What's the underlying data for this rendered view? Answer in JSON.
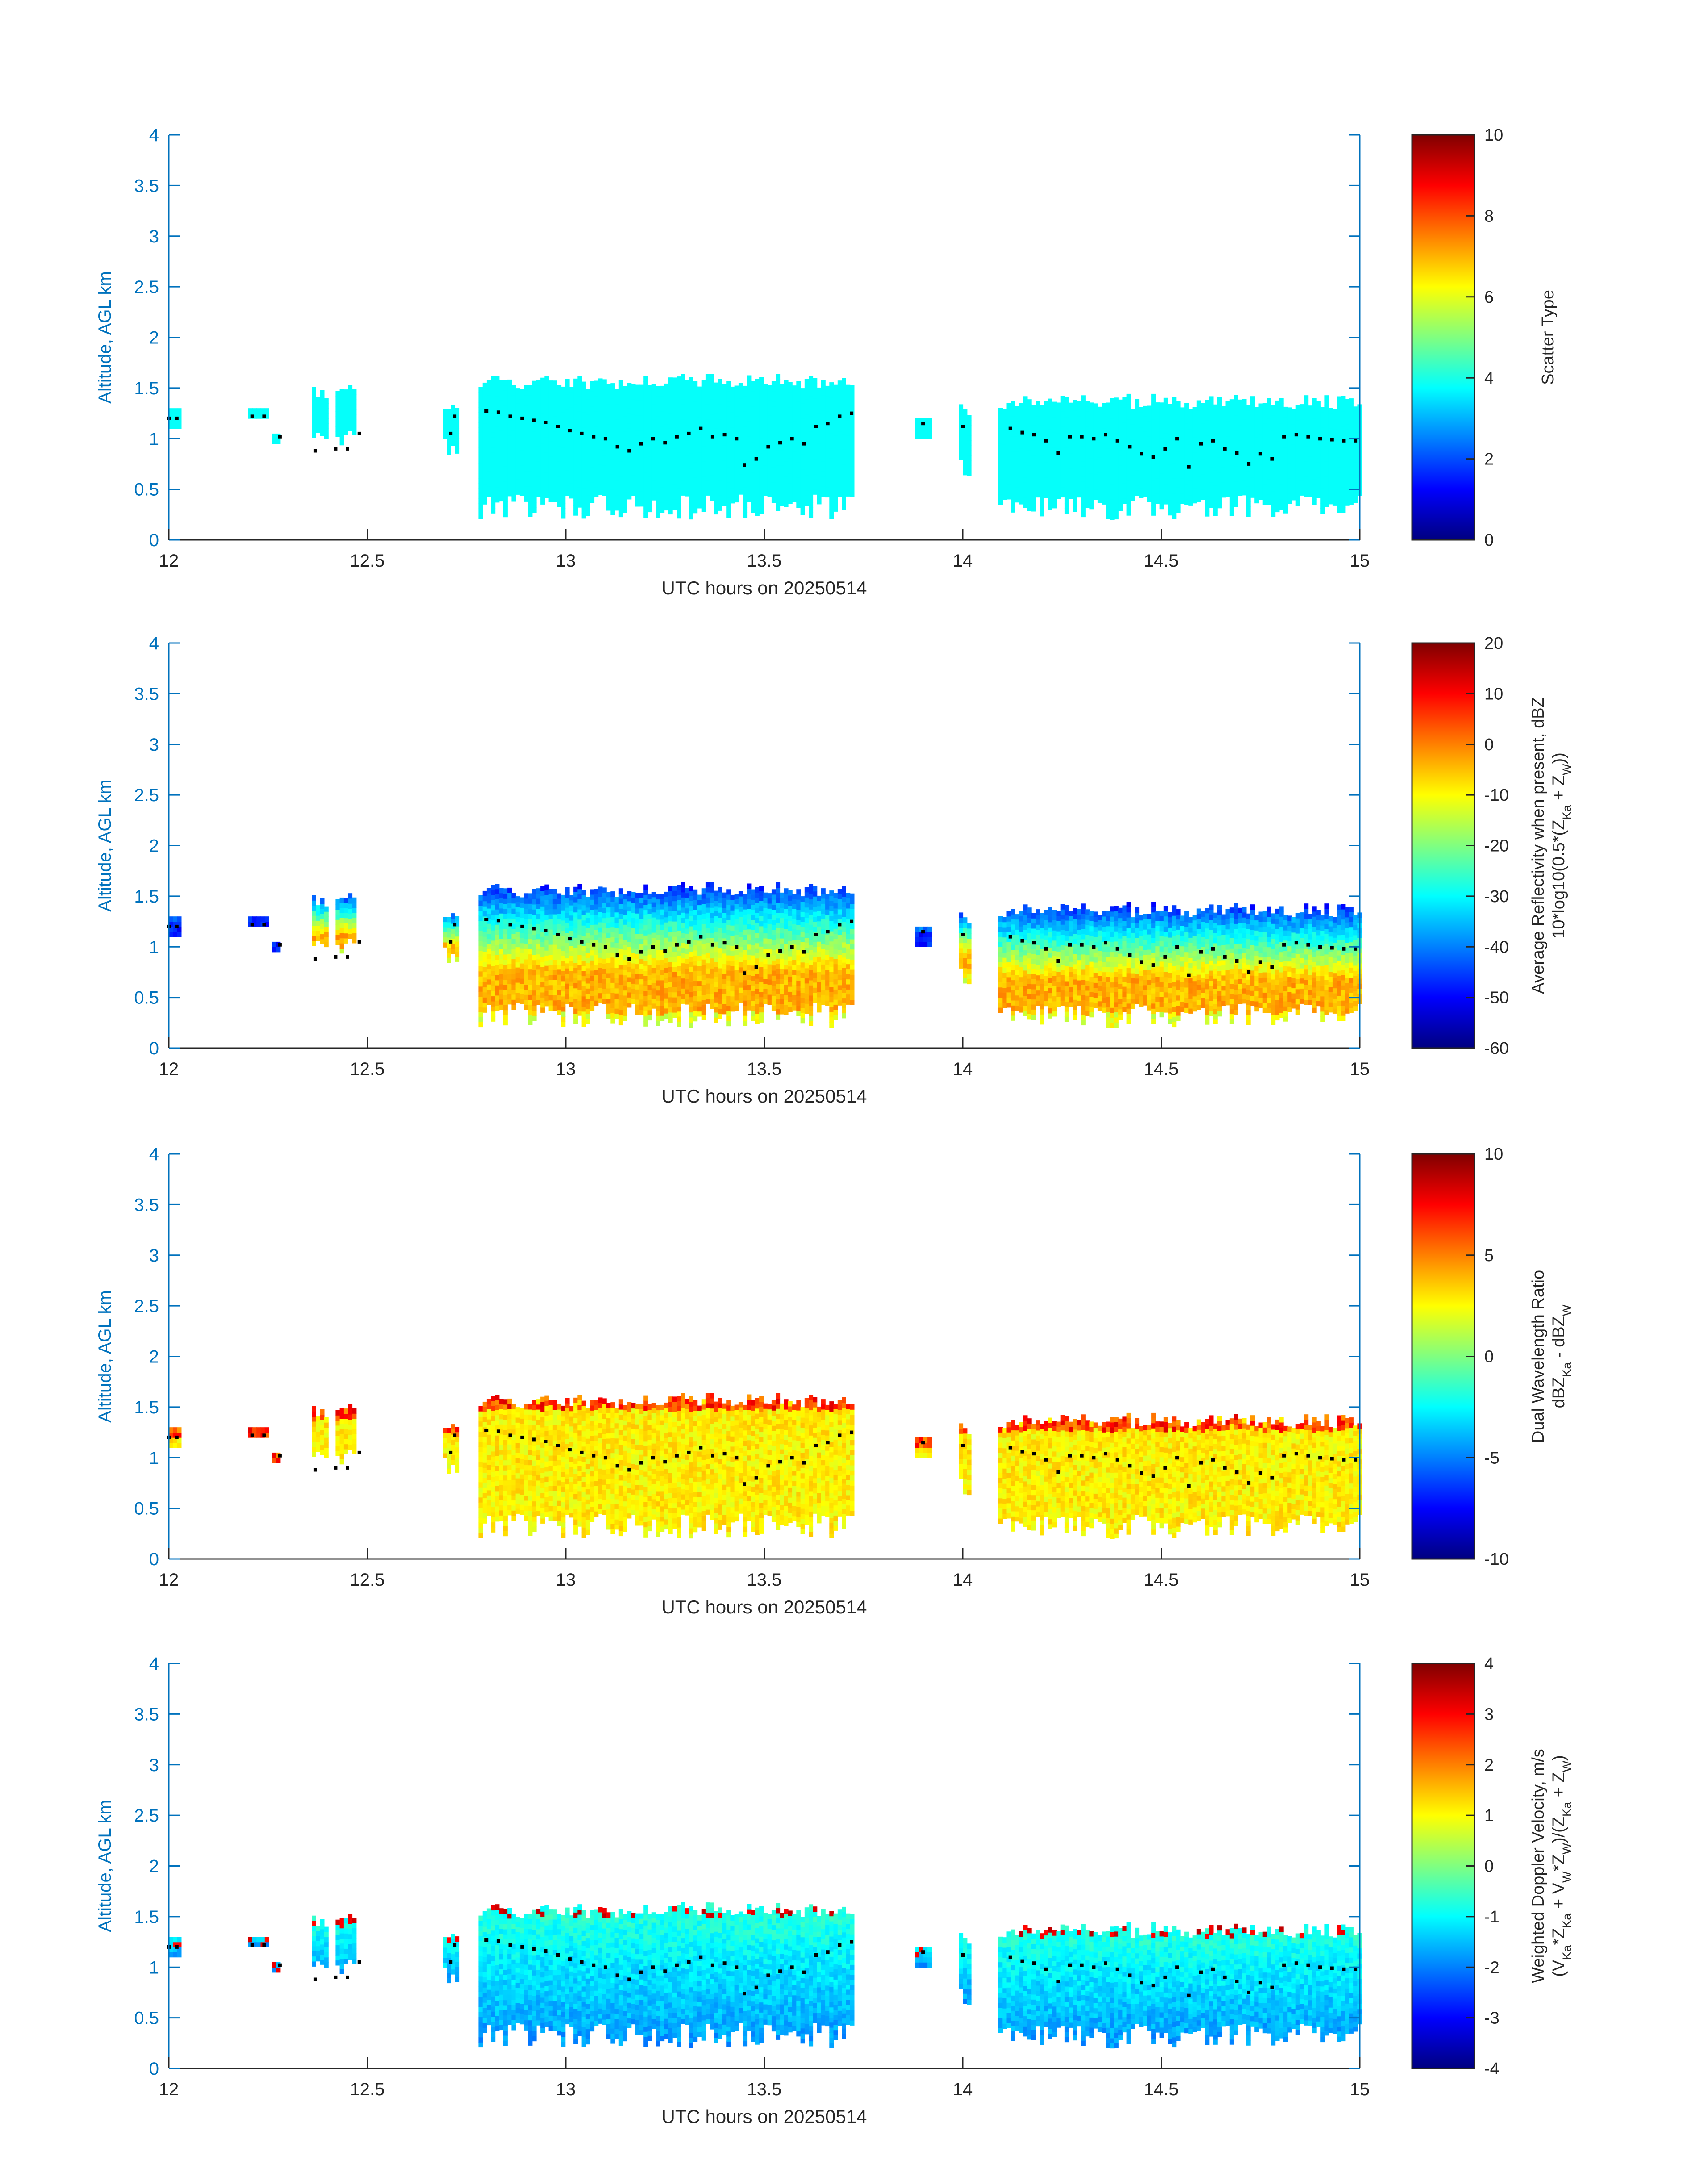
{
  "chart_data": [
    {
      "type": "heatmap",
      "xlabel": "UTC hours on 20250514",
      "ylabel": "Altitude, AGL km",
      "xlim": [
        12,
        15
      ],
      "ylim": [
        0,
        4
      ],
      "xticks": [
        "12",
        "12.5",
        "13",
        "13.5",
        "14",
        "14.5",
        "15"
      ],
      "yticks": [
        "0",
        "0.5",
        "1",
        "1.5",
        "2",
        "2.5",
        "3",
        "3.5",
        "4"
      ],
      "colorbar": {
        "label_lines": [
          "Scatter Type"
        ],
        "clim": [
          0,
          10
        ],
        "ticks": [
          "0",
          "2",
          "4",
          "6",
          "8",
          "10"
        ],
        "colormap": "jet"
      },
      "field": "scatter_type"
    },
    {
      "type": "heatmap",
      "xlabel": "UTC hours on 20250514",
      "ylabel": "Altitude, AGL km",
      "xlim": [
        12,
        15
      ],
      "ylim": [
        0,
        4
      ],
      "xticks": [
        "12",
        "12.5",
        "13",
        "13.5",
        "14",
        "14.5",
        "15"
      ],
      "yticks": [
        "0",
        "0.5",
        "1",
        "1.5",
        "2",
        "2.5",
        "3",
        "3.5",
        "4"
      ],
      "colorbar": {
        "label_lines": [
          "Average Reflectivity when present, dBZ",
          "10*log10(0.5*(Z",
          "Ka",
          " + Z",
          "W",
          "))"
        ],
        "clim": [
          -60,
          20
        ],
        "ticks": [
          "-60",
          "-50",
          "-40",
          "-30",
          "-20",
          "-10",
          "0",
          "10",
          "20"
        ],
        "colormap": "jet"
      },
      "field": "reflectivity"
    },
    {
      "type": "heatmap",
      "xlabel": "UTC hours on 20250514",
      "ylabel": "Altitude, AGL km",
      "xlim": [
        12,
        15
      ],
      "ylim": [
        0,
        4
      ],
      "xticks": [
        "12",
        "12.5",
        "13",
        "13.5",
        "14",
        "14.5",
        "15"
      ],
      "yticks": [
        "0",
        "0.5",
        "1",
        "1.5",
        "2",
        "2.5",
        "3",
        "3.5",
        "4"
      ],
      "colorbar": {
        "label_lines": [
          "Dual Wavelength Ratio",
          "dBZ",
          "Ka",
          " - dBZ",
          "W"
        ],
        "clim": [
          -10,
          10
        ],
        "ticks": [
          "-10",
          "-5",
          "0",
          "5",
          "10"
        ],
        "colormap": "jet"
      },
      "field": "dwr"
    },
    {
      "type": "heatmap",
      "xlabel": "UTC hours on 20250514",
      "ylabel": "Altitude, AGL km",
      "xlim": [
        12,
        15
      ],
      "ylim": [
        0,
        4
      ],
      "xticks": [
        "12",
        "12.5",
        "13",
        "13.5",
        "14",
        "14.5",
        "15"
      ],
      "yticks": [
        "0",
        "0.5",
        "1",
        "1.5",
        "2",
        "2.5",
        "3",
        "3.5",
        "4"
      ],
      "colorbar": {
        "label_lines": [
          "Weighted Doppler Velocity, m/s",
          "(V",
          "Ka",
          "*Z",
          "Ka",
          " + V",
          "W",
          "*Z",
          "W",
          ")/(Z",
          "Ka",
          " + Z",
          "W",
          ")"
        ],
        "clim": [
          -4,
          4
        ],
        "ticks": [
          "-4",
          "-3",
          "-2",
          "-1",
          "0",
          "1",
          "2",
          "3",
          "4"
        ],
        "colormap": "jet"
      },
      "field": "doppler"
    }
  ],
  "cloud_segments": [
    {
      "t0": 12.0,
      "t1": 12.03,
      "base": 1.1,
      "top": 1.3
    },
    {
      "t0": 12.2,
      "t1": 12.25,
      "base": 1.2,
      "top": 1.3
    },
    {
      "t0": 12.26,
      "t1": 12.28,
      "base": 0.95,
      "top": 1.05
    },
    {
      "t0": 12.36,
      "t1": 12.4,
      "base": 0.85,
      "top": 1.5
    },
    {
      "t0": 12.42,
      "t1": 12.47,
      "base": 0.85,
      "top": 1.5
    },
    {
      "t0": 12.69,
      "t1": 12.73,
      "base": 0.75,
      "top": 1.35
    },
    {
      "t0": 12.78,
      "t1": 13.72,
      "base": 0.2,
      "top": 1.6
    },
    {
      "t0": 13.88,
      "t1": 13.92,
      "base": 1.0,
      "top": 1.2
    },
    {
      "t0": 13.99,
      "t1": 14.02,
      "base": 0.6,
      "top": 1.35
    },
    {
      "t0": 14.09,
      "t1": 15.0,
      "base": 0.2,
      "top": 1.4
    }
  ],
  "cloud_base_km": [
    [
      12.0,
      1.2
    ],
    [
      12.02,
      1.2
    ],
    [
      12.21,
      1.22
    ],
    [
      12.24,
      1.22
    ],
    [
      12.28,
      1.02
    ],
    [
      12.37,
      0.88
    ],
    [
      12.42,
      0.9
    ],
    [
      12.45,
      0.9
    ],
    [
      12.48,
      1.05
    ],
    [
      12.71,
      1.05
    ],
    [
      12.72,
      1.22
    ],
    [
      12.8,
      1.27
    ],
    [
      12.83,
      1.26
    ],
    [
      12.86,
      1.22
    ],
    [
      12.89,
      1.2
    ],
    [
      12.92,
      1.18
    ],
    [
      12.95,
      1.16
    ],
    [
      12.98,
      1.12
    ],
    [
      13.01,
      1.08
    ],
    [
      13.04,
      1.05
    ],
    [
      13.07,
      1.02
    ],
    [
      13.1,
      1.0
    ],
    [
      13.13,
      0.92
    ],
    [
      13.16,
      0.88
    ],
    [
      13.19,
      0.95
    ],
    [
      13.22,
      1.0
    ],
    [
      13.25,
      0.96
    ],
    [
      13.28,
      1.02
    ],
    [
      13.31,
      1.05
    ],
    [
      13.34,
      1.1
    ],
    [
      13.37,
      1.02
    ],
    [
      13.4,
      1.04
    ],
    [
      13.43,
      1.0
    ],
    [
      13.45,
      0.74
    ],
    [
      13.48,
      0.8
    ],
    [
      13.51,
      0.92
    ],
    [
      13.54,
      0.96
    ],
    [
      13.57,
      1.0
    ],
    [
      13.6,
      0.95
    ],
    [
      13.63,
      1.12
    ],
    [
      13.66,
      1.15
    ],
    [
      13.69,
      1.22
    ],
    [
      13.72,
      1.25
    ],
    [
      13.9,
      1.15
    ],
    [
      14.0,
      1.12
    ],
    [
      14.12,
      1.1
    ],
    [
      14.15,
      1.06
    ],
    [
      14.18,
      1.04
    ],
    [
      14.21,
      0.98
    ],
    [
      14.24,
      0.86
    ],
    [
      14.27,
      1.02
    ],
    [
      14.3,
      1.02
    ],
    [
      14.33,
      1.0
    ],
    [
      14.36,
      1.04
    ],
    [
      14.39,
      0.98
    ],
    [
      14.42,
      0.92
    ],
    [
      14.45,
      0.85
    ],
    [
      14.48,
      0.82
    ],
    [
      14.51,
      0.9
    ],
    [
      14.54,
      1.0
    ],
    [
      14.57,
      0.72
    ],
    [
      14.6,
      0.95
    ],
    [
      14.63,
      0.98
    ],
    [
      14.66,
      0.9
    ],
    [
      14.69,
      0.86
    ],
    [
      14.72,
      0.75
    ],
    [
      14.75,
      0.85
    ],
    [
      14.78,
      0.8
    ],
    [
      14.81,
      1.02
    ],
    [
      14.84,
      1.04
    ],
    [
      14.87,
      1.02
    ],
    [
      14.9,
      1.0
    ],
    [
      14.93,
      0.99
    ],
    [
      14.96,
      0.98
    ],
    [
      14.99,
      0.98
    ]
  ]
}
